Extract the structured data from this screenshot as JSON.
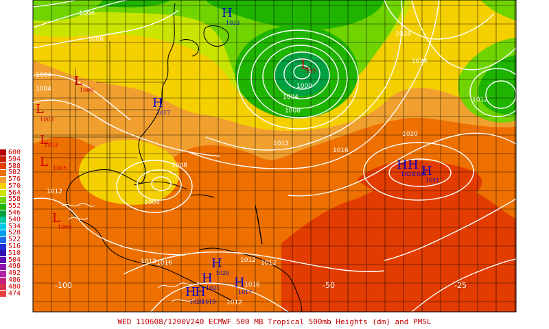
{
  "caption": "WED 110608/1200V240  ECMWF  500 MB Tropical 500mb Heights (dm) and PMSL",
  "legend": [
    {
      "label": "600",
      "color": "#b00000"
    },
    {
      "label": "594",
      "color": "#c81f00"
    },
    {
      "label": "588",
      "color": "#e23c00"
    },
    {
      "label": "582",
      "color": "#ee7000"
    },
    {
      "label": "576",
      "color": "#f1a030"
    },
    {
      "label": "570",
      "color": "#f5d000"
    },
    {
      "label": "564",
      "color": "#c8e400"
    },
    {
      "label": "558",
      "color": "#6fd400"
    },
    {
      "label": "552",
      "color": "#1fb400"
    },
    {
      "label": "546",
      "color": "#00a040"
    },
    {
      "label": "540",
      "color": "#00c8a0"
    },
    {
      "label": "534",
      "color": "#00c8e8"
    },
    {
      "label": "528",
      "color": "#00a0f0"
    },
    {
      "label": "522",
      "color": "#2068f0"
    },
    {
      "label": "516",
      "color": "#2030d8"
    },
    {
      "label": "510",
      "color": "#3010b0"
    },
    {
      "label": "504",
      "color": "#6010b0"
    },
    {
      "label": "498",
      "color": "#9010b0"
    },
    {
      "label": "492",
      "color": "#b020a8"
    },
    {
      "label": "486",
      "color": "#c82080"
    },
    {
      "label": "480",
      "color": "#d83050"
    },
    {
      "label": "474",
      "color": "#e84040"
    }
  ],
  "longitude_labels": [
    {
      "text": "-100"
    },
    {
      "text": "-50"
    },
    {
      "text": "-25"
    }
  ],
  "pressure_centers": [
    {
      "type": "H",
      "value": "1023"
    },
    {
      "type": "L",
      "value": "1006"
    },
    {
      "type": "H",
      "value": "1017"
    },
    {
      "type": "L",
      "value": "999"
    },
    {
      "type": "L",
      "value": "1003"
    },
    {
      "type": "L",
      "value": "1005"
    },
    {
      "type": "L",
      "value": "1006"
    },
    {
      "type": "L",
      "value": "1003"
    },
    {
      "type": "H",
      "value": "1021"
    },
    {
      "type": "H",
      "value": "1021"
    },
    {
      "type": "H",
      "value": "1021"
    },
    {
      "type": "H",
      "value": "1020"
    },
    {
      "type": "H",
      "value": "1021"
    },
    {
      "type": "H",
      "value": "1017"
    },
    {
      "type": "H",
      "value": "1020"
    },
    {
      "type": "H",
      "value": "1019"
    }
  ],
  "isobar_labels": [
    {
      "text": "1004"
    },
    {
      "text": "1008"
    },
    {
      "text": "1028"
    },
    {
      "text": "1024"
    },
    {
      "text": "1012"
    },
    {
      "text": "1004"
    },
    {
      "text": "1004"
    },
    {
      "text": "1004"
    },
    {
      "text": "1008"
    },
    {
      "text": "1000"
    },
    {
      "text": "1016"
    },
    {
      "text": "1012"
    },
    {
      "text": "1020"
    },
    {
      "text": "1012"
    },
    {
      "text": "1008"
    },
    {
      "text": "1004"
    },
    {
      "text": "1012"
    },
    {
      "text": "1016"
    },
    {
      "text": "1012"
    },
    {
      "text": "1012"
    },
    {
      "text": "1016"
    },
    {
      "text": "1012"
    }
  ]
}
